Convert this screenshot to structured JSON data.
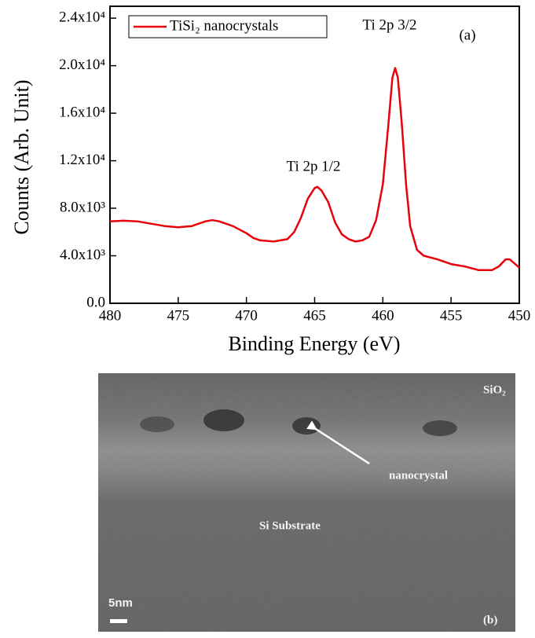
{
  "chart_data": {
    "type": "line",
    "x_label": "Binding Energy (eV)",
    "y_label": "Counts (Arb. Unit)",
    "annotations": [
      "(a)",
      "Ti 2p 3/2",
      "Ti 2p 1/2"
    ],
    "x": [
      480,
      479,
      478,
      477,
      476,
      475,
      474,
      473,
      472.5,
      472,
      471,
      470,
      469.5,
      469,
      468,
      467,
      466.5,
      466,
      465.5,
      465,
      464.8,
      464.5,
      464,
      463.5,
      463,
      462.5,
      462,
      461.5,
      461,
      460.5,
      460,
      459.6,
      459.3,
      459.1,
      458.9,
      458.6,
      458.3,
      458,
      457.5,
      457,
      456,
      455,
      454,
      453,
      452,
      451.5,
      451,
      450.7,
      450.3,
      450
    ],
    "series": [
      {
        "name": "TiSi₂ nanocrystals",
        "color": "#e8000b",
        "values": [
          6900,
          6950,
          6900,
          6700,
          6500,
          6400,
          6500,
          6900,
          7000,
          6900,
          6500,
          5900,
          5500,
          5300,
          5200,
          5400,
          6000,
          7200,
          8800,
          9700,
          9800,
          9500,
          8500,
          6800,
          5800,
          5400,
          5200,
          5300,
          5600,
          7000,
          10000,
          15000,
          19000,
          19800,
          19000,
          15000,
          10000,
          6500,
          4500,
          4000,
          3700,
          3300,
          3100,
          2800,
          2800,
          3100,
          3700,
          3700,
          3300,
          3000
        ]
      }
    ],
    "xlim": [
      480,
      450
    ],
    "xticks": [
      480,
      475,
      470,
      465,
      460,
      455,
      450
    ],
    "ylim": [
      0,
      25000
    ],
    "yticks": [
      {
        "value": 0,
        "label": "0.0"
      },
      {
        "value": 4000,
        "label": "4.0x10³"
      },
      {
        "value": 8000,
        "label": "8.0x10³"
      },
      {
        "value": 12000,
        "label": "1.2x10⁴"
      },
      {
        "value": 16000,
        "label": "1.6x10⁴"
      },
      {
        "value": 20000,
        "label": "2.0x10⁴"
      },
      {
        "value": 24000,
        "label": "2.4x10⁴"
      }
    ],
    "legend": "top-left"
  },
  "tem_image": {
    "labels": [
      "SiO₂",
      "nanocrystal",
      "Si Substrate",
      "5nm",
      "(b)"
    ]
  }
}
